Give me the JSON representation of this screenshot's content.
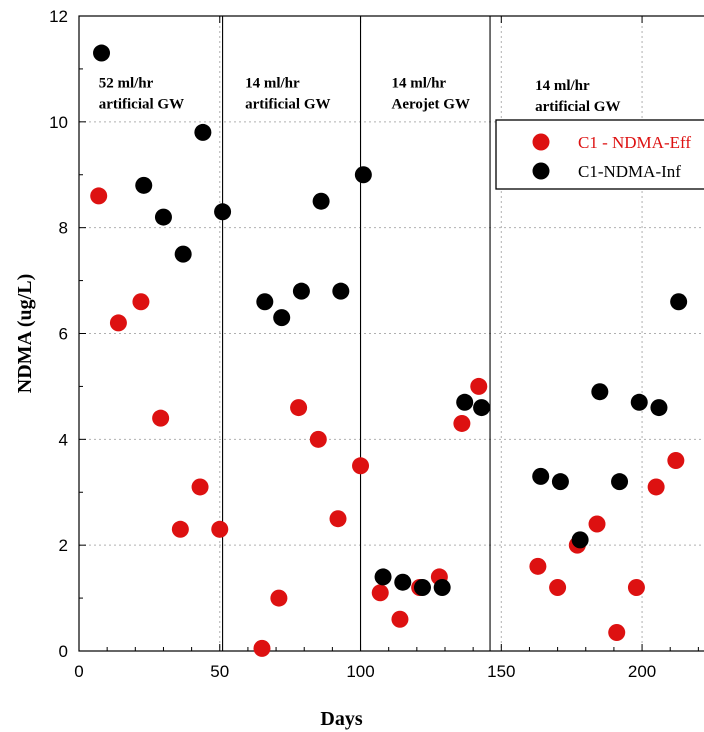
{
  "chart_data": {
    "type": "scatter",
    "xlabel": "Days",
    "ylabel": "NDMA (ug/L)",
    "xlim": [
      0,
      222
    ],
    "ylim": [
      0,
      12
    ],
    "xticks": [
      0,
      50,
      100,
      150,
      200
    ],
    "yticks": [
      0,
      2,
      4,
      6,
      8,
      10,
      12
    ],
    "grid": "dotted",
    "legend_position": "top-right",
    "phase_boundaries": [
      51,
      100,
      146
    ],
    "phase_labels": [
      {
        "line1": "52 ml/hr",
        "line2": "artificial GW",
        "x": 7,
        "y": 10.65
      },
      {
        "line1": "14 ml/hr",
        "line2": "artificial GW",
        "x": 59,
        "y": 10.65
      },
      {
        "line1": "14 ml/hr",
        "line2": "Aerojet GW",
        "x": 111,
        "y": 10.65
      },
      {
        "line1": "14 ml/hr",
        "line2": "artificial GW",
        "x": 162,
        "y": 10.6
      }
    ],
    "series": [
      {
        "name": "C1 - NDMA-Eff",
        "color": "#dd1111",
        "points": [
          [
            7,
            8.6
          ],
          [
            14,
            6.2
          ],
          [
            22,
            6.6
          ],
          [
            29,
            4.4
          ],
          [
            36,
            2.3
          ],
          [
            43,
            3.1
          ],
          [
            50,
            2.3
          ],
          [
            65,
            0.05
          ],
          [
            71,
            1.0
          ],
          [
            78,
            4.6
          ],
          [
            85,
            4.0
          ],
          [
            92,
            2.5
          ],
          [
            100,
            3.5
          ],
          [
            107,
            1.1
          ],
          [
            114,
            0.6
          ],
          [
            121,
            1.2
          ],
          [
            128,
            1.4
          ],
          [
            136,
            4.3
          ],
          [
            142,
            5.0
          ],
          [
            163,
            1.6
          ],
          [
            170,
            1.2
          ],
          [
            177,
            2.0
          ],
          [
            184,
            2.4
          ],
          [
            191,
            0.35
          ],
          [
            198,
            1.2
          ],
          [
            205,
            3.1
          ],
          [
            212,
            3.6
          ]
        ]
      },
      {
        "name": "C1-NDMA-Inf",
        "color": "#000000",
        "points": [
          [
            8,
            11.3
          ],
          [
            23,
            8.8
          ],
          [
            30,
            8.2
          ],
          [
            37,
            7.5
          ],
          [
            44,
            9.8
          ],
          [
            51,
            8.3
          ],
          [
            66,
            6.6
          ],
          [
            72,
            6.3
          ],
          [
            79,
            6.8
          ],
          [
            86,
            8.5
          ],
          [
            93,
            6.8
          ],
          [
            101,
            9.0
          ],
          [
            108,
            1.4
          ],
          [
            115,
            1.3
          ],
          [
            122,
            1.2
          ],
          [
            129,
            1.2
          ],
          [
            137,
            4.7
          ],
          [
            143,
            4.6
          ],
          [
            164,
            3.3
          ],
          [
            171,
            3.2
          ],
          [
            178,
            2.1
          ],
          [
            185,
            4.9
          ],
          [
            192,
            3.2
          ],
          [
            199,
            4.7
          ],
          [
            206,
            4.6
          ],
          [
            213,
            6.6
          ]
        ]
      }
    ]
  }
}
